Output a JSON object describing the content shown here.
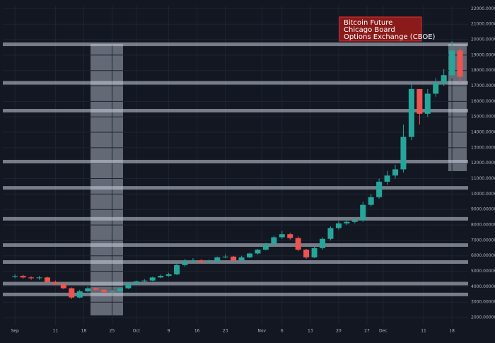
{
  "chart_data": {
    "type": "candlestick",
    "annotation": [
      "Bitcoin Future",
      "Chicago Board",
      "Options Exchange (CBOE)"
    ],
    "x": [
      0,
      2,
      4,
      6,
      8,
      10,
      12,
      14,
      16,
      18,
      20,
      22,
      24,
      26,
      28,
      30,
      32,
      34,
      36,
      38,
      40,
      42,
      44,
      46,
      48,
      50,
      52,
      54,
      56,
      58,
      60,
      62,
      64,
      66,
      68,
      70,
      72,
      74,
      76,
      78,
      80,
      82,
      84,
      86,
      88,
      90,
      92,
      94,
      96,
      98,
      100,
      102,
      104,
      106,
      108,
      110
    ],
    "open": [
      4650,
      4700,
      4600,
      4550,
      4600,
      4300,
      4200,
      3900,
      3300,
      3700,
      3900,
      3800,
      3650,
      3700,
      3900,
      4200,
      4350,
      4400,
      4600,
      4700,
      4800,
      5400,
      5650,
      5700,
      5600,
      5650,
      5900,
      5950,
      5700,
      5900,
      6150,
      6400,
      6750,
      7200,
      7400,
      7150,
      6400,
      5900,
      6500,
      7100,
      7800,
      8100,
      8200,
      8300,
      9300,
      9800,
      10800,
      11200,
      11600,
      13700,
      16800,
      15200,
      16500,
      17200,
      17700,
      19300
    ],
    "high": [
      4800,
      4780,
      4680,
      4700,
      4650,
      4400,
      4250,
      3950,
      3800,
      4000,
      3950,
      3850,
      3780,
      3950,
      4250,
      4400,
      4500,
      4650,
      4780,
      4900,
      5500,
      5800,
      5850,
      5780,
      5750,
      5950,
      6100,
      6000,
      6000,
      6200,
      6450,
      6850,
      7300,
      7600,
      7500,
      7250,
      6450,
      6600,
      7200,
      7900,
      8250,
      8350,
      8400,
      9500,
      10000,
      11000,
      11500,
      11900,
      14500,
      17200,
      16800,
      16800,
      17500,
      18100,
      19900,
      19500
    ],
    "low": [
      4550,
      4520,
      4450,
      4450,
      4250,
      4100,
      3850,
      3200,
      3250,
      3650,
      3750,
      3600,
      3580,
      3650,
      3850,
      4150,
      4300,
      4350,
      4550,
      4650,
      4750,
      5300,
      5550,
      5500,
      5550,
      5600,
      5850,
      5600,
      5650,
      5850,
      6100,
      6350,
      6700,
      7100,
      7050,
      6300,
      5800,
      5850,
      6400,
      7000,
      7700,
      8000,
      8100,
      8200,
      9200,
      9700,
      10600,
      11000,
      11400,
      13500,
      14500,
      15000,
      16300,
      17000,
      17500,
      17200
    ],
    "close": [
      4700,
      4600,
      4550,
      4600,
      4300,
      4200,
      3900,
      3300,
      3700,
      3900,
      3800,
      3650,
      3700,
      3900,
      4200,
      4350,
      4400,
      4600,
      4700,
      4800,
      5400,
      5650,
      5700,
      5600,
      5650,
      5900,
      5950,
      5700,
      5900,
      6150,
      6400,
      6750,
      7200,
      7400,
      7150,
      6400,
      5900,
      6500,
      7100,
      7800,
      8100,
      8200,
      8300,
      9300,
      9800,
      10800,
      11200,
      11600,
      13700,
      16800,
      15200,
      16500,
      17200,
      17700,
      19300,
      17600
    ],
    "up_color": "#26a69a",
    "down_color": "#ef5350",
    "levels": [
      19700,
      17200,
      15400,
      12100,
      10400,
      8400,
      6700,
      5600,
      4200,
      3500
    ],
    "xlim": [
      -3,
      112
    ],
    "xticks": [
      {
        "value": 0,
        "label": "Sep"
      },
      {
        "value": 10,
        "label": "11"
      },
      {
        "value": 17,
        "label": "18"
      },
      {
        "value": 24,
        "label": "25"
      },
      {
        "value": 30,
        "label": "Oct"
      },
      {
        "value": 38,
        "label": "9"
      },
      {
        "value": 45,
        "label": "16"
      },
      {
        "value": 52,
        "label": "23"
      },
      {
        "value": 61,
        "label": "Nov"
      },
      {
        "value": 66,
        "label": "6"
      },
      {
        "value": 73,
        "label": "13"
      },
      {
        "value": 80,
        "label": "20"
      },
      {
        "value": 87,
        "label": "27"
      },
      {
        "value": 91,
        "label": "Dec"
      },
      {
        "value": 101,
        "label": "11"
      },
      {
        "value": 108,
        "label": "18"
      }
    ],
    "ylim": [
      1500,
      22200
    ],
    "yticks": [
      {
        "value": 2000,
        "label": "2000.00000000"
      },
      {
        "value": 3000,
        "label": "3000.00000000"
      },
      {
        "value": 4000,
        "label": "4000.00000000"
      },
      {
        "value": 5000,
        "label": "5000.00000000"
      },
      {
        "value": 6000,
        "label": "6000.00000000"
      },
      {
        "value": 7000,
        "label": "7000.00000000"
      },
      {
        "value": 8000,
        "label": "8000.00000000"
      },
      {
        "value": 9000,
        "label": "9000.00000000"
      },
      {
        "value": 10000,
        "label": "10000.00000000"
      },
      {
        "value": 11000,
        "label": "11000.00000000"
      },
      {
        "value": 12000,
        "label": "12000.00000000"
      },
      {
        "value": 13000,
        "label": "13000.00000000"
      },
      {
        "value": 14000,
        "label": "14000.00000000"
      },
      {
        "value": 15000,
        "label": "15000.00000000"
      },
      {
        "value": 16000,
        "label": "16000.00000000"
      },
      {
        "value": 17000,
        "label": "17000.00000000"
      },
      {
        "value": 18000,
        "label": "18000.00000000"
      },
      {
        "value": 19000,
        "label": "19000.00000000"
      },
      {
        "value": 20000,
        "label": "20000.00000000"
      },
      {
        "value": 21000,
        "label": "21000.00000000"
      },
      {
        "value": 22000,
        "label": "22000.00000000"
      }
    ],
    "grid": true
  }
}
